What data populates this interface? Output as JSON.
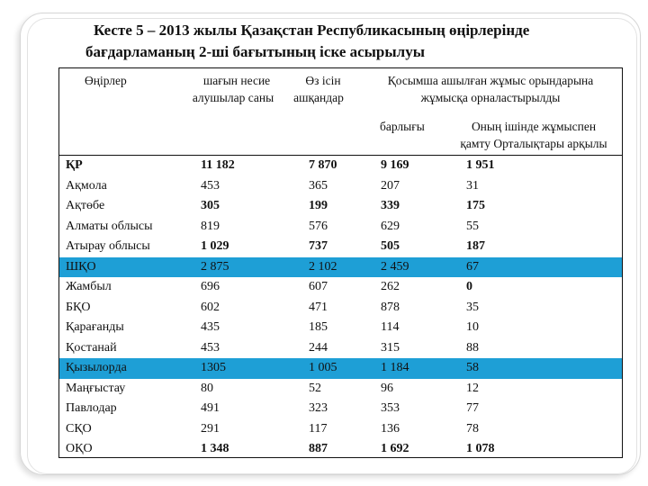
{
  "title": {
    "line1": "Кесте 5 – 2013 жылы Қазақстан Республикасының өңірлерінде",
    "line2": "бағдарламаның 2-ші бағытының іске асырылуы"
  },
  "headers": {
    "regions": "Өңірлер",
    "borrowers_line1": "шағын несие",
    "borrowers_line2": "алушылар саны",
    "own_line1": "Өз ісін",
    "own_line2": "ашқандар",
    "jobs_line1": "Қосымша ашылған жұмыс орындарына",
    "jobs_line2": "жұмысқа орналастырылды",
    "total": "барлығы",
    "centers_line1": "Оның ішінде жұмыспен",
    "centers_line2": "қамту Орталықтары арқылы"
  },
  "rows": [
    {
      "region": "ҚР",
      "borrowers": "11 182",
      "own": "7 870",
      "total": "9 169",
      "centers": "1 951",
      "bold": [
        0,
        1,
        2,
        3,
        4
      ],
      "highlight": false
    },
    {
      "region": "Ақмола",
      "borrowers": "453",
      "own": "365",
      "total": "207",
      "centers": "31",
      "bold": [],
      "highlight": false
    },
    {
      "region": "Ақтөбе",
      "borrowers": "305",
      "own": "199",
      "total": "339",
      "centers": "175",
      "bold": [
        1,
        2,
        3,
        4
      ],
      "highlight": false
    },
    {
      "region": "Алматы облысы",
      "borrowers": "819",
      "own": "576",
      "total": "629",
      "centers": "55",
      "bold": [],
      "highlight": false
    },
    {
      "region": "Атырау облысы",
      "borrowers": "1 029",
      "own": "737",
      "total": "505",
      "centers": "187",
      "bold": [
        1,
        2,
        3,
        4
      ],
      "highlight": false
    },
    {
      "region": "ШҚО",
      "borrowers": "2 875",
      "own": "2 102",
      "total": "2 459",
      "centers": "67",
      "bold": [],
      "highlight": true
    },
    {
      "region": "Жамбыл",
      "borrowers": "696",
      "own": "607",
      "total": "262",
      "centers": "0",
      "bold": [
        4
      ],
      "highlight": false
    },
    {
      "region": "БҚО",
      "borrowers": "602",
      "own": "471",
      "total": "878",
      "centers": "35",
      "bold": [],
      "highlight": false
    },
    {
      "region": "Қарағанды",
      "borrowers": "435",
      "own": "185",
      "total": "114",
      "centers": "10",
      "bold": [],
      "highlight": false
    },
    {
      "region": "Қостанай",
      "borrowers": "453",
      "own": "244",
      "total": "315",
      "centers": "88",
      "bold": [],
      "highlight": false
    },
    {
      "region": "Қызылорда",
      "borrowers": "1305",
      "own": "1 005",
      "total": "1 184",
      "centers": "58",
      "bold": [],
      "highlight": true
    },
    {
      "region": "Маңғыстау",
      "borrowers": "80",
      "own": "52",
      "total": "96",
      "centers": "12",
      "bold": [],
      "highlight": false
    },
    {
      "region": "Павлодар",
      "borrowers": "491",
      "own": "323",
      "total": "353",
      "centers": "77",
      "bold": [],
      "highlight": false
    },
    {
      "region": "СҚО",
      "borrowers": "291",
      "own": "117",
      "total": "136",
      "centers": "78",
      "bold": [],
      "highlight": false
    },
    {
      "region": "ОҚО",
      "borrowers": "1 348",
      "own": "887",
      "total": "1 692",
      "centers": "1 078",
      "bold": [
        1,
        2,
        3,
        4
      ],
      "highlight": false
    }
  ],
  "colors": {
    "highlight_row": "#1e9fd6",
    "text": "#111111",
    "border": "#111111"
  }
}
